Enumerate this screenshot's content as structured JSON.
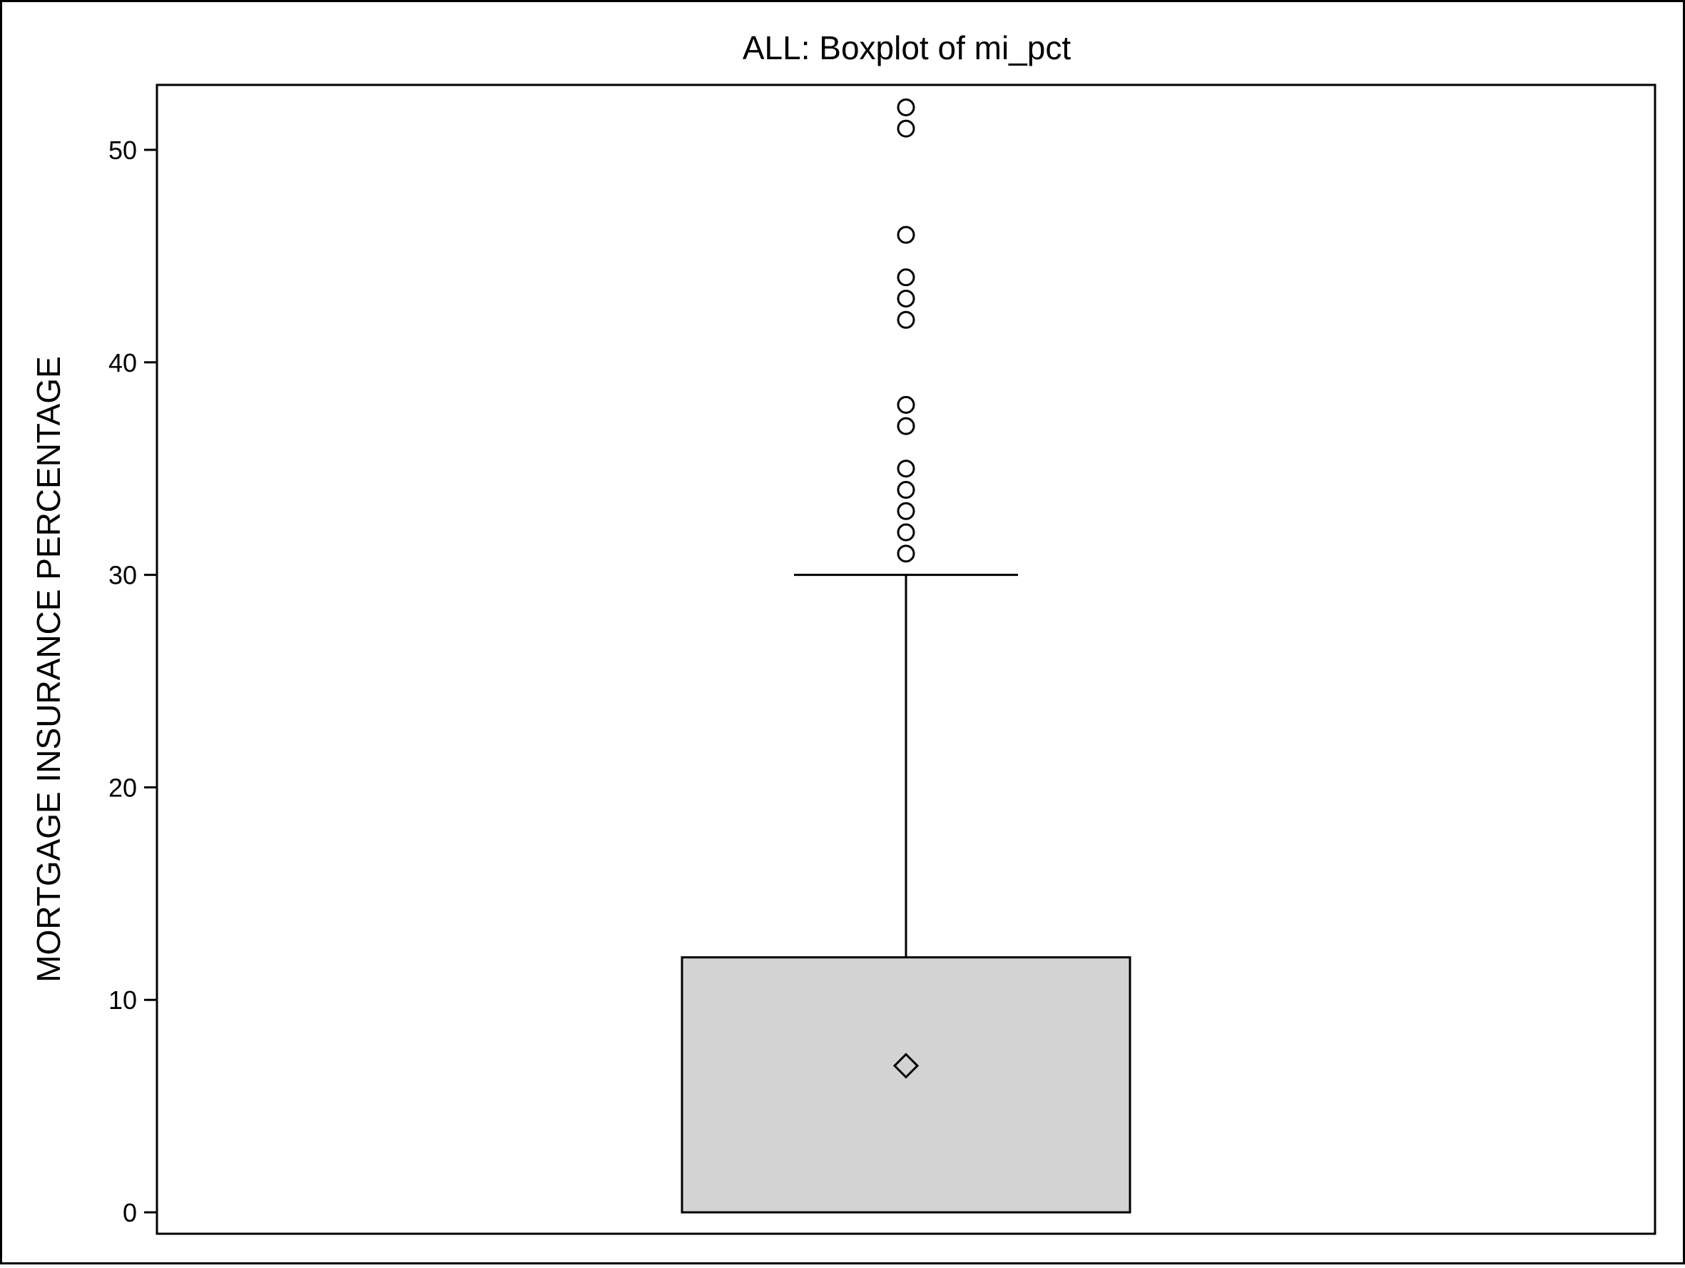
{
  "chart_data": {
    "type": "box",
    "title": "ALL: Boxplot of mi_pct",
    "xlabel": "",
    "ylabel": "MORTGAGE INSURANCE PERCENTAGE",
    "ylim": [
      -1,
      52.5
    ],
    "yticks": [
      0,
      10,
      20,
      30,
      40,
      50
    ],
    "ytick_labels": [
      "0",
      "10",
      "20",
      "30",
      "40",
      "50"
    ],
    "grid": false,
    "legend": "none",
    "box": {
      "whisker_low": 0,
      "q1": 0,
      "median": 0,
      "q3": 12,
      "whisker_high": 30,
      "mean": 6.9
    },
    "outliers": [
      31,
      32,
      33,
      34,
      35,
      37,
      38,
      42,
      43,
      44,
      46,
      51,
      52
    ],
    "colors": {
      "box_fill": "#d3d3d3",
      "line": "#000000",
      "outlier_fill": "#ffffff",
      "mean_marker_fill": "#d3d3d3",
      "background": "#ffffff"
    },
    "markers": {
      "outlier": "circle",
      "mean": "diamond"
    }
  }
}
